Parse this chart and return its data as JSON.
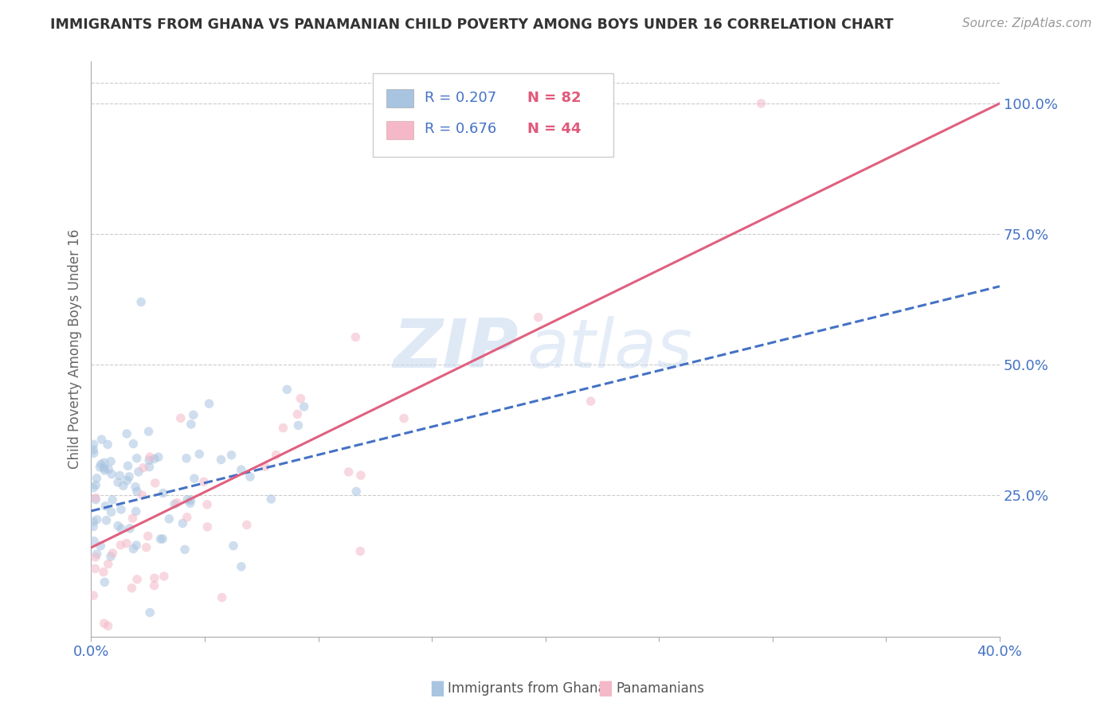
{
  "title": "IMMIGRANTS FROM GHANA VS PANAMANIAN CHILD POVERTY AMONG BOYS UNDER 16 CORRELATION CHART",
  "source": "Source: ZipAtlas.com",
  "ylabel": "Child Poverty Among Boys Under 16",
  "ytick_labels": [
    "",
    "25.0%",
    "50.0%",
    "75.0%",
    "100.0%"
  ],
  "ytick_values": [
    0.0,
    0.25,
    0.5,
    0.75,
    1.0
  ],
  "xlim": [
    0.0,
    0.4
  ],
  "ylim": [
    -0.02,
    1.08
  ],
  "ghana_R": 0.207,
  "ghana_N": 82,
  "panama_R": 0.676,
  "panama_N": 44,
  "ghana_color": "#a8c4e0",
  "ghana_line_color": "#4472c4",
  "panama_color": "#f4b8c8",
  "panama_line_color": "#e06080",
  "legend_R_color": "#4472c4",
  "legend_N_color": "#e05a7a",
  "watermark_zip": "ZIP",
  "watermark_atlas": "atlas",
  "background_color": "#ffffff",
  "grid_color": "#cccccc",
  "title_color": "#333333",
  "axis_label_color": "#4472c4",
  "legend_item1": "Immigrants from Ghana",
  "legend_item2": "Panamanians",
  "marker_size": 70,
  "marker_alpha": 0.55,
  "ghana_line_x0": 0.0,
  "ghana_line_y0": 0.22,
  "ghana_line_x1": 0.4,
  "ghana_line_y1": 0.65,
  "panama_line_x0": 0.0,
  "panama_line_y0": 0.15,
  "panama_line_x1": 0.4,
  "panama_line_y1": 1.0
}
